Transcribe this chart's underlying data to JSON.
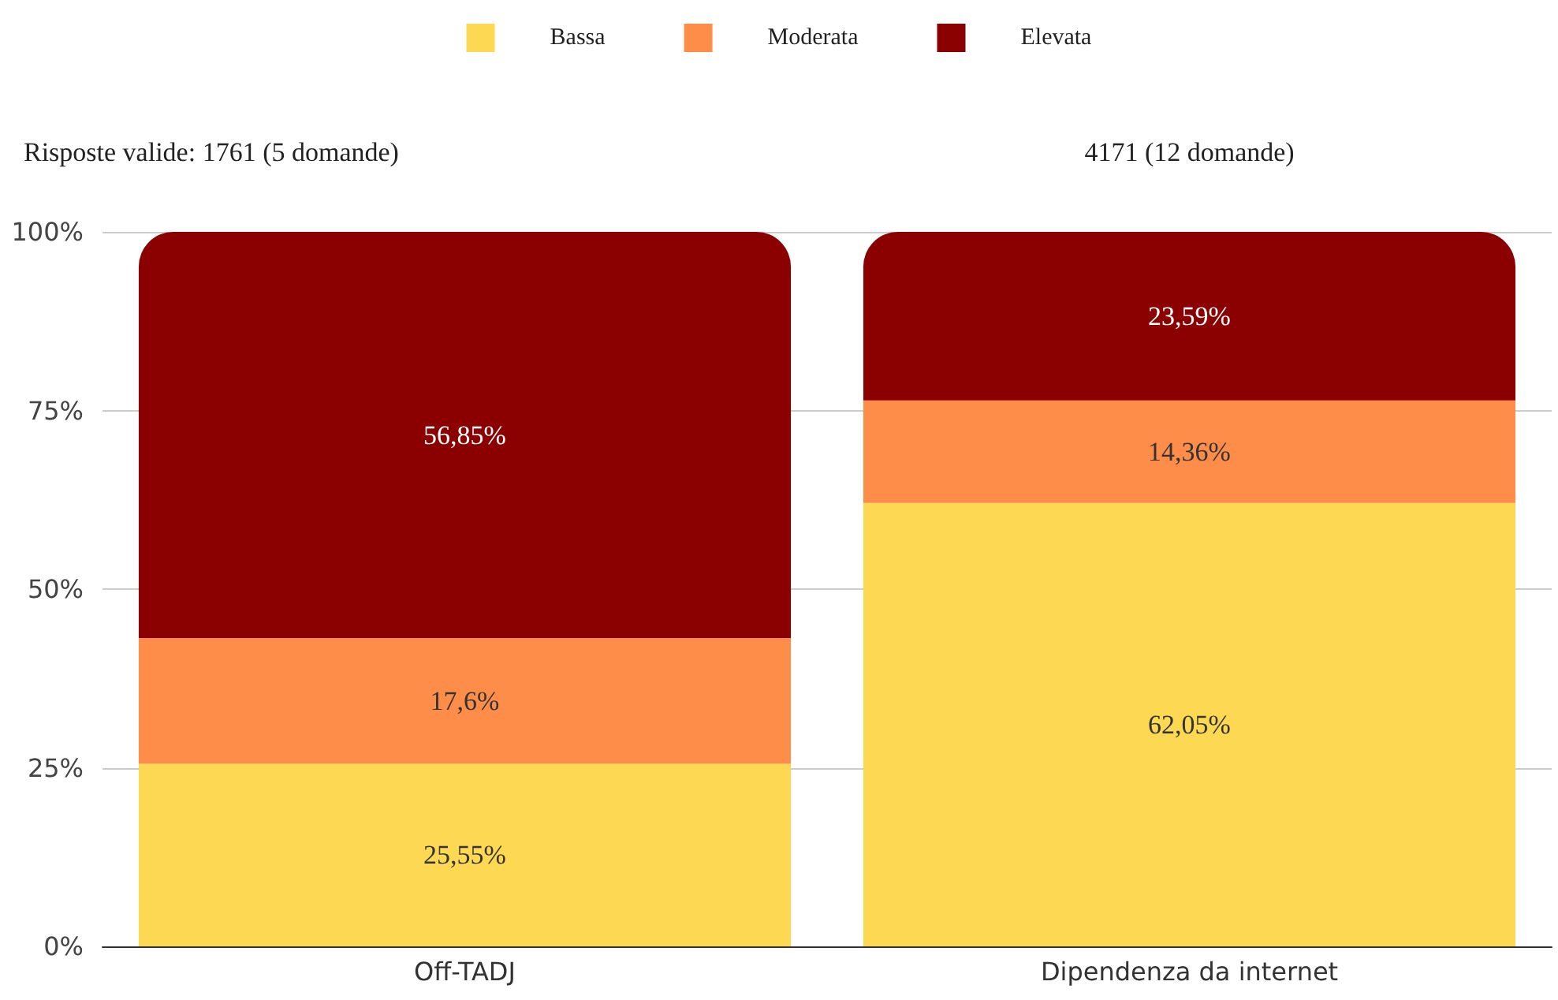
{
  "chart_data": {
    "type": "bar",
    "stacked": true,
    "categories": [
      "Off-TADJ",
      "Dipendenza da internet"
    ],
    "series": [
      {
        "name": "Bassa",
        "color": "#fdd853",
        "values": [
          25.55,
          62.05
        ],
        "value_labels": [
          "25,55%",
          "62,05%"
        ]
      },
      {
        "name": "Moderata",
        "color": "#fe8d4a",
        "values": [
          17.6,
          14.36
        ],
        "value_labels": [
          "17,6%",
          "14,36%"
        ]
      },
      {
        "name": "Elevata",
        "color": "#8b0000",
        "values": [
          56.85,
          23.59
        ],
        "value_labels": [
          "56,85%",
          "23,59%"
        ]
      }
    ],
    "ylim": [
      0,
      100
    ],
    "yticks": [
      {
        "value": 0,
        "label": "0%"
      },
      {
        "value": 25,
        "label": "25%"
      },
      {
        "value": 50,
        "label": "50%"
      },
      {
        "value": 75,
        "label": "75%"
      },
      {
        "value": 100,
        "label": "100%"
      }
    ],
    "grid": "y",
    "legend": "top",
    "annotations": [
      "Risposte valide: 1761 (5 domande)",
      "4171 (12 domande)"
    ]
  }
}
